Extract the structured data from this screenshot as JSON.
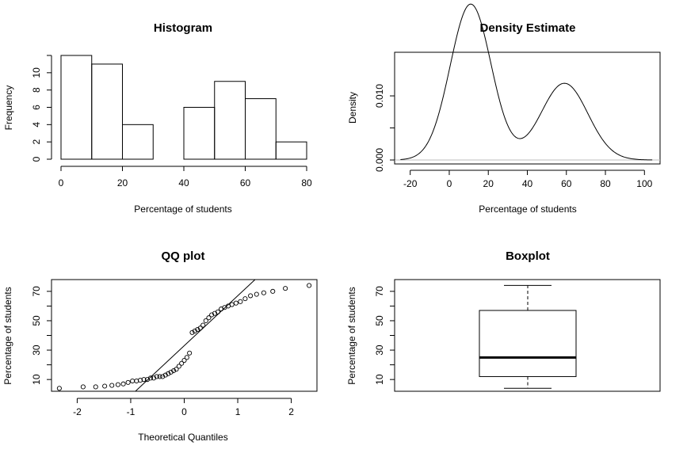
{
  "chart_data": [
    {
      "type": "bar",
      "title": "Histogram",
      "xlabel": "Percentage of students",
      "ylabel": "Frequency",
      "bins": [
        {
          "from": 0,
          "to": 10,
          "count": 12
        },
        {
          "from": 10,
          "to": 20,
          "count": 11
        },
        {
          "from": 20,
          "to": 30,
          "count": 4
        },
        {
          "from": 30,
          "to": 40,
          "count": 0
        },
        {
          "from": 40,
          "to": 50,
          "count": 6
        },
        {
          "from": 50,
          "to": 60,
          "count": 9
        },
        {
          "from": 60,
          "to": 70,
          "count": 7
        },
        {
          "from": 70,
          "to": 80,
          "count": 2
        }
      ],
      "xlim": [
        0,
        80
      ],
      "ylim": [
        0,
        12
      ],
      "xticks": [
        0,
        20,
        40,
        60,
        80
      ],
      "yticks": [
        0,
        2,
        4,
        6,
        8,
        10
      ]
    },
    {
      "type": "line",
      "title": "Density Estimate",
      "xlabel": "Percentage of students",
      "ylabel": "Density",
      "xticks": [
        -20,
        0,
        20,
        40,
        60,
        80,
        100
      ],
      "yticks": [
        0.0,
        0.005,
        0.01
      ],
      "ytick_labels": [
        "0.000",
        "",
        "0.010"
      ],
      "xlim": [
        -28,
        108
      ],
      "ylim": [
        0,
        0.0168
      ],
      "components": [
        {
          "weight": 0.64,
          "mean": 11,
          "sd": 10.5
        },
        {
          "weight": 0.36,
          "mean": 59,
          "sd": 12
        }
      ],
      "support": [
        -25,
        104
      ]
    },
    {
      "type": "scatter",
      "title": "QQ plot",
      "xlabel": "Theoretical Quantiles",
      "ylabel": "Percentage of students",
      "xticks": [
        -2,
        -1,
        0,
        1,
        2
      ],
      "yticks": [
        10,
        30,
        50,
        70
      ],
      "minor_yticks": [
        20,
        40,
        60
      ],
      "xlim": [
        -2.48,
        2.48
      ],
      "ylim": [
        2,
        78
      ],
      "line": {
        "intercept": 33,
        "slope": 34
      },
      "values": [
        4,
        5,
        5,
        5.5,
        6,
        6.5,
        7,
        8,
        9,
        9,
        9.5,
        10,
        10,
        11,
        11,
        12,
        12,
        12,
        13,
        14,
        15,
        16,
        17,
        19,
        21,
        23,
        25,
        28,
        42,
        43,
        44,
        45,
        47,
        50,
        52,
        54,
        55,
        56,
        58,
        59,
        60,
        61,
        62,
        63,
        65,
        67,
        68,
        69,
        70,
        72,
        74
      ]
    },
    {
      "type": "box",
      "title": "Boxplot",
      "ylabel": "Percentage of students",
      "yticks": [
        10,
        30,
        50,
        70
      ],
      "minor_yticks": [
        20,
        40,
        60
      ],
      "ylim": [
        2,
        78
      ],
      "stats": {
        "min": 4,
        "q1": 12,
        "median": 25,
        "q3": 57,
        "max": 74
      }
    }
  ],
  "colors": {
    "line": "#000000",
    "zero_line": "#bebebe",
    "background": "#ffffff"
  }
}
